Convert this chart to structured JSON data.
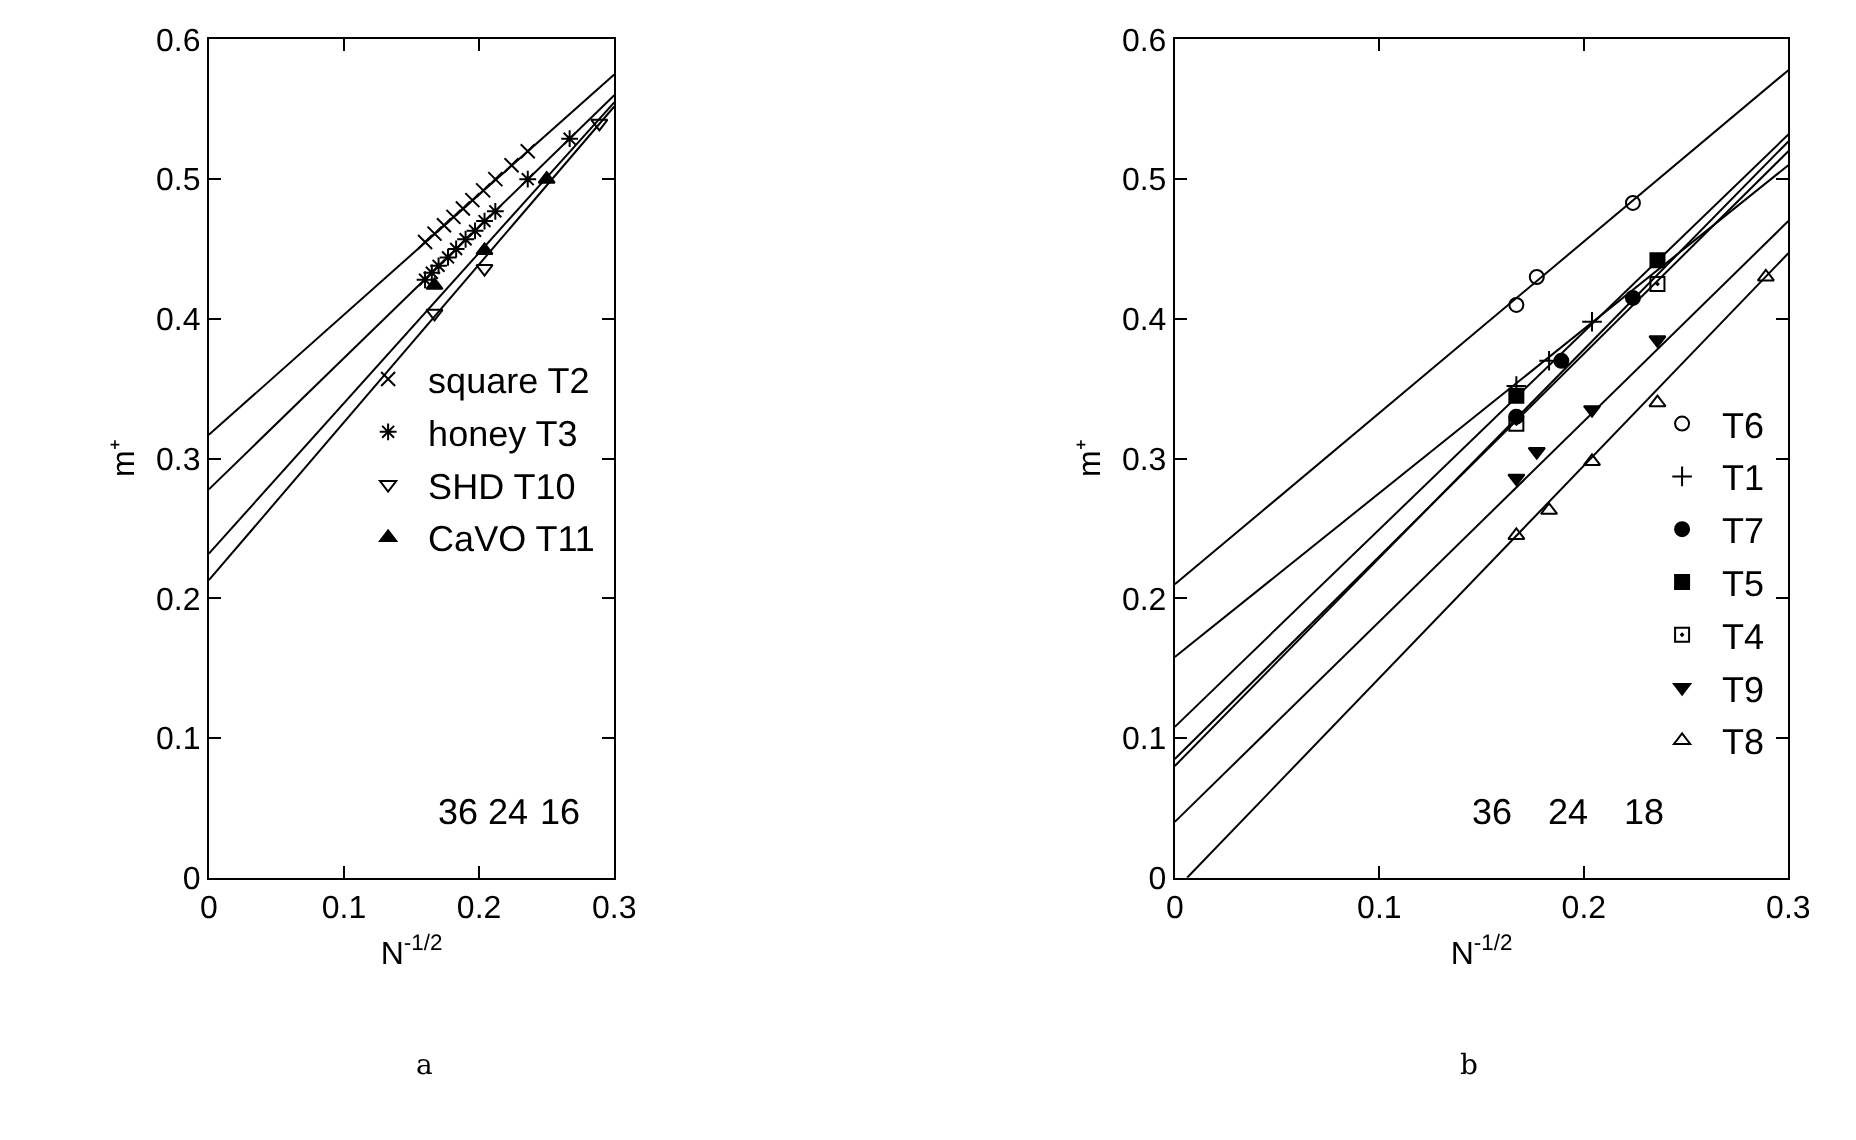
{
  "chart_data": [
    {
      "type": "scatter",
      "xlabel": "N$^{-1/2}$",
      "ylabel": "m⁺",
      "xlim": [
        0,
        0.3
      ],
      "ylim": [
        0,
        0.6
      ],
      "xticks": [
        0,
        0.1,
        0.2,
        0.3
      ],
      "yticks": [
        0,
        0.1,
        0.2,
        0.3,
        0.4,
        0.5,
        0.6
      ],
      "legend": "right",
      "annotations": [
        "36",
        "24",
        "16",
        "a"
      ],
      "series": [
        {
          "name": "square T2",
          "color": "#000000",
          "marker": "x",
          "x": [
            0.16,
            0.167,
            0.174,
            0.181,
            0.188,
            0.195,
            0.203,
            0.212,
            0.224,
            0.236
          ],
          "values": [
            0.455,
            0.461,
            0.467,
            0.473,
            0.479,
            0.485,
            0.492,
            0.5,
            0.51,
            0.52
          ]
        },
        {
          "name": "honey T3",
          "color": "#000000",
          "marker": "cross",
          "x": [
            0.16,
            0.165,
            0.17,
            0.177,
            0.183,
            0.19,
            0.197,
            0.204,
            0.212,
            0.236,
            0.267
          ],
          "values": [
            0.428,
            0.433,
            0.438,
            0.444,
            0.45,
            0.457,
            0.463,
            0.47,
            0.477,
            0.5,
            0.529
          ]
        },
        {
          "name": "SHD T10",
          "color": "#000000",
          "marker": "triangle-down-open",
          "x": [
            0.167,
            0.204,
            0.289
          ],
          "values": [
            0.404,
            0.436,
            0.54
          ]
        },
        {
          "name": "CaVO T11",
          "color": "#000000",
          "marker": "triangle",
          "x": [
            0.167,
            0.204,
            0.25
          ],
          "values": [
            0.424,
            0.449,
            0.5
          ]
        },
        {
          "type": "line",
          "color": "#000000",
          "marker": "none",
          "x": [
            0,
            0.3
          ],
          "values": [
            0.317,
            0.575
          ]
        },
        {
          "type": "line",
          "color": "#000000",
          "marker": "none",
          "x": [
            0,
            0.3
          ],
          "values": [
            0.278,
            0.56
          ]
        },
        {
          "type": "line",
          "color": "#000000",
          "marker": "none",
          "x": [
            0,
            0.3
          ],
          "values": [
            0.232,
            0.555
          ]
        },
        {
          "type": "line",
          "color": "#000000",
          "marker": "none",
          "x": [
            0,
            0.3
          ],
          "values": [
            0.213,
            0.552
          ]
        }
      ]
    },
    {
      "type": "scatter",
      "xlabel": "N$^{-1/2}$",
      "ylabel": "m⁺",
      "xlim": [
        0,
        0.3
      ],
      "ylim": [
        0,
        0.6
      ],
      "xticks": [
        0,
        0.1,
        0.2,
        0.3
      ],
      "yticks": [
        0,
        0.1,
        0.2,
        0.3,
        0.4,
        0.5,
        0.6
      ],
      "legend": "bottom right",
      "annotations": [
        "36",
        "24",
        "18",
        "b"
      ],
      "series": [
        {
          "name": "T6",
          "color": "#000000",
          "marker": "circle-open",
          "x": [
            0.167,
            0.177,
            0.224
          ],
          "values": [
            0.41,
            0.43,
            0.483
          ]
        },
        {
          "name": "T1",
          "color": "#000000",
          "marker": "plus",
          "x": [
            0.167,
            0.183,
            0.204
          ],
          "values": [
            0.352,
            0.37,
            0.398
          ]
        },
        {
          "name": "T7",
          "color": "#000000",
          "marker": "circle",
          "x": [
            0.167,
            0.189,
            0.224
          ],
          "values": [
            0.33,
            0.37,
            0.415
          ]
        },
        {
          "name": "T5",
          "color": "#000000",
          "marker": "square",
          "x": [
            0.167,
            0.236
          ],
          "values": [
            0.345,
            0.442
          ]
        },
        {
          "name": "T4",
          "color": "#000000",
          "marker": "square-open",
          "x": [
            0.167,
            0.236
          ],
          "values": [
            0.325,
            0.425
          ]
        },
        {
          "name": "T9",
          "color": "#000000",
          "marker": "triangle-down",
          "x": [
            0.167,
            0.177,
            0.204,
            0.236
          ],
          "values": [
            0.286,
            0.305,
            0.335,
            0.385
          ]
        },
        {
          "name": "T8",
          "color": "#000000",
          "marker": "triangle-open",
          "x": [
            0.167,
            0.183,
            0.204,
            0.236,
            0.289
          ],
          "values": [
            0.245,
            0.263,
            0.298,
            0.34,
            0.43
          ]
        },
        {
          "type": "line",
          "color": "#000000",
          "marker": "none",
          "x": [
            0,
            0.3
          ],
          "values": [
            0.21,
            0.578
          ]
        },
        {
          "type": "line",
          "color": "#000000",
          "marker": "none",
          "x": [
            0,
            0.3
          ],
          "values": [
            0.158,
            0.51
          ]
        },
        {
          "type": "line",
          "color": "#000000",
          "marker": "none",
          "x": [
            0,
            0.3
          ],
          "values": [
            0.08,
            0.527
          ]
        },
        {
          "type": "line",
          "color": "#000000",
          "marker": "none",
          "x": [
            0,
            0.3
          ],
          "values": [
            0.108,
            0.532
          ]
        },
        {
          "type": "line",
          "color": "#000000",
          "marker": "none",
          "x": [
            0,
            0.3
          ],
          "values": [
            0.085,
            0.52
          ]
        },
        {
          "type": "line",
          "color": "#000000",
          "marker": "none",
          "x": [
            0,
            0.3
          ],
          "values": [
            0.04,
            0.47
          ]
        },
        {
          "type": "line",
          "color": "#000000",
          "marker": "none",
          "x": [
            0.006,
            0.3
          ],
          "values": [
            0,
            0.447
          ]
        }
      ]
    }
  ]
}
